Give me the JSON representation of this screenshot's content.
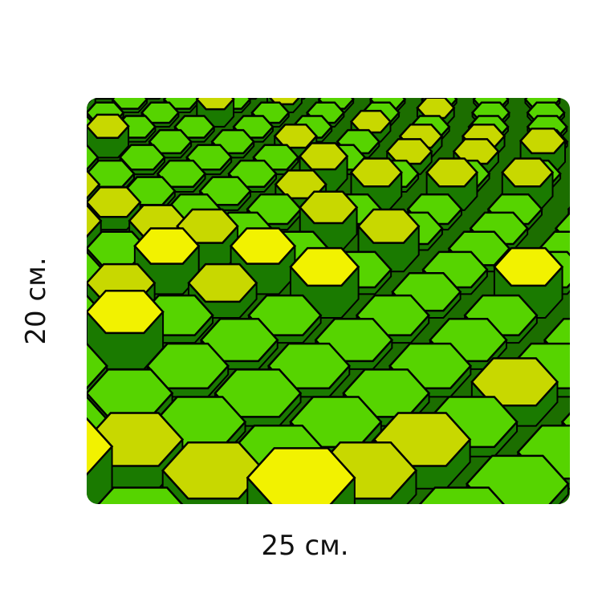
{
  "product": {
    "height_label": "20 см.",
    "width_label": "25 см.",
    "pattern": "3d-green-yellow-hexagons",
    "colors": {
      "green": "#56d400",
      "lime": "#c8d800",
      "yellow": "#f2f200",
      "side": "#1a7a00",
      "edge": "#000000"
    }
  }
}
